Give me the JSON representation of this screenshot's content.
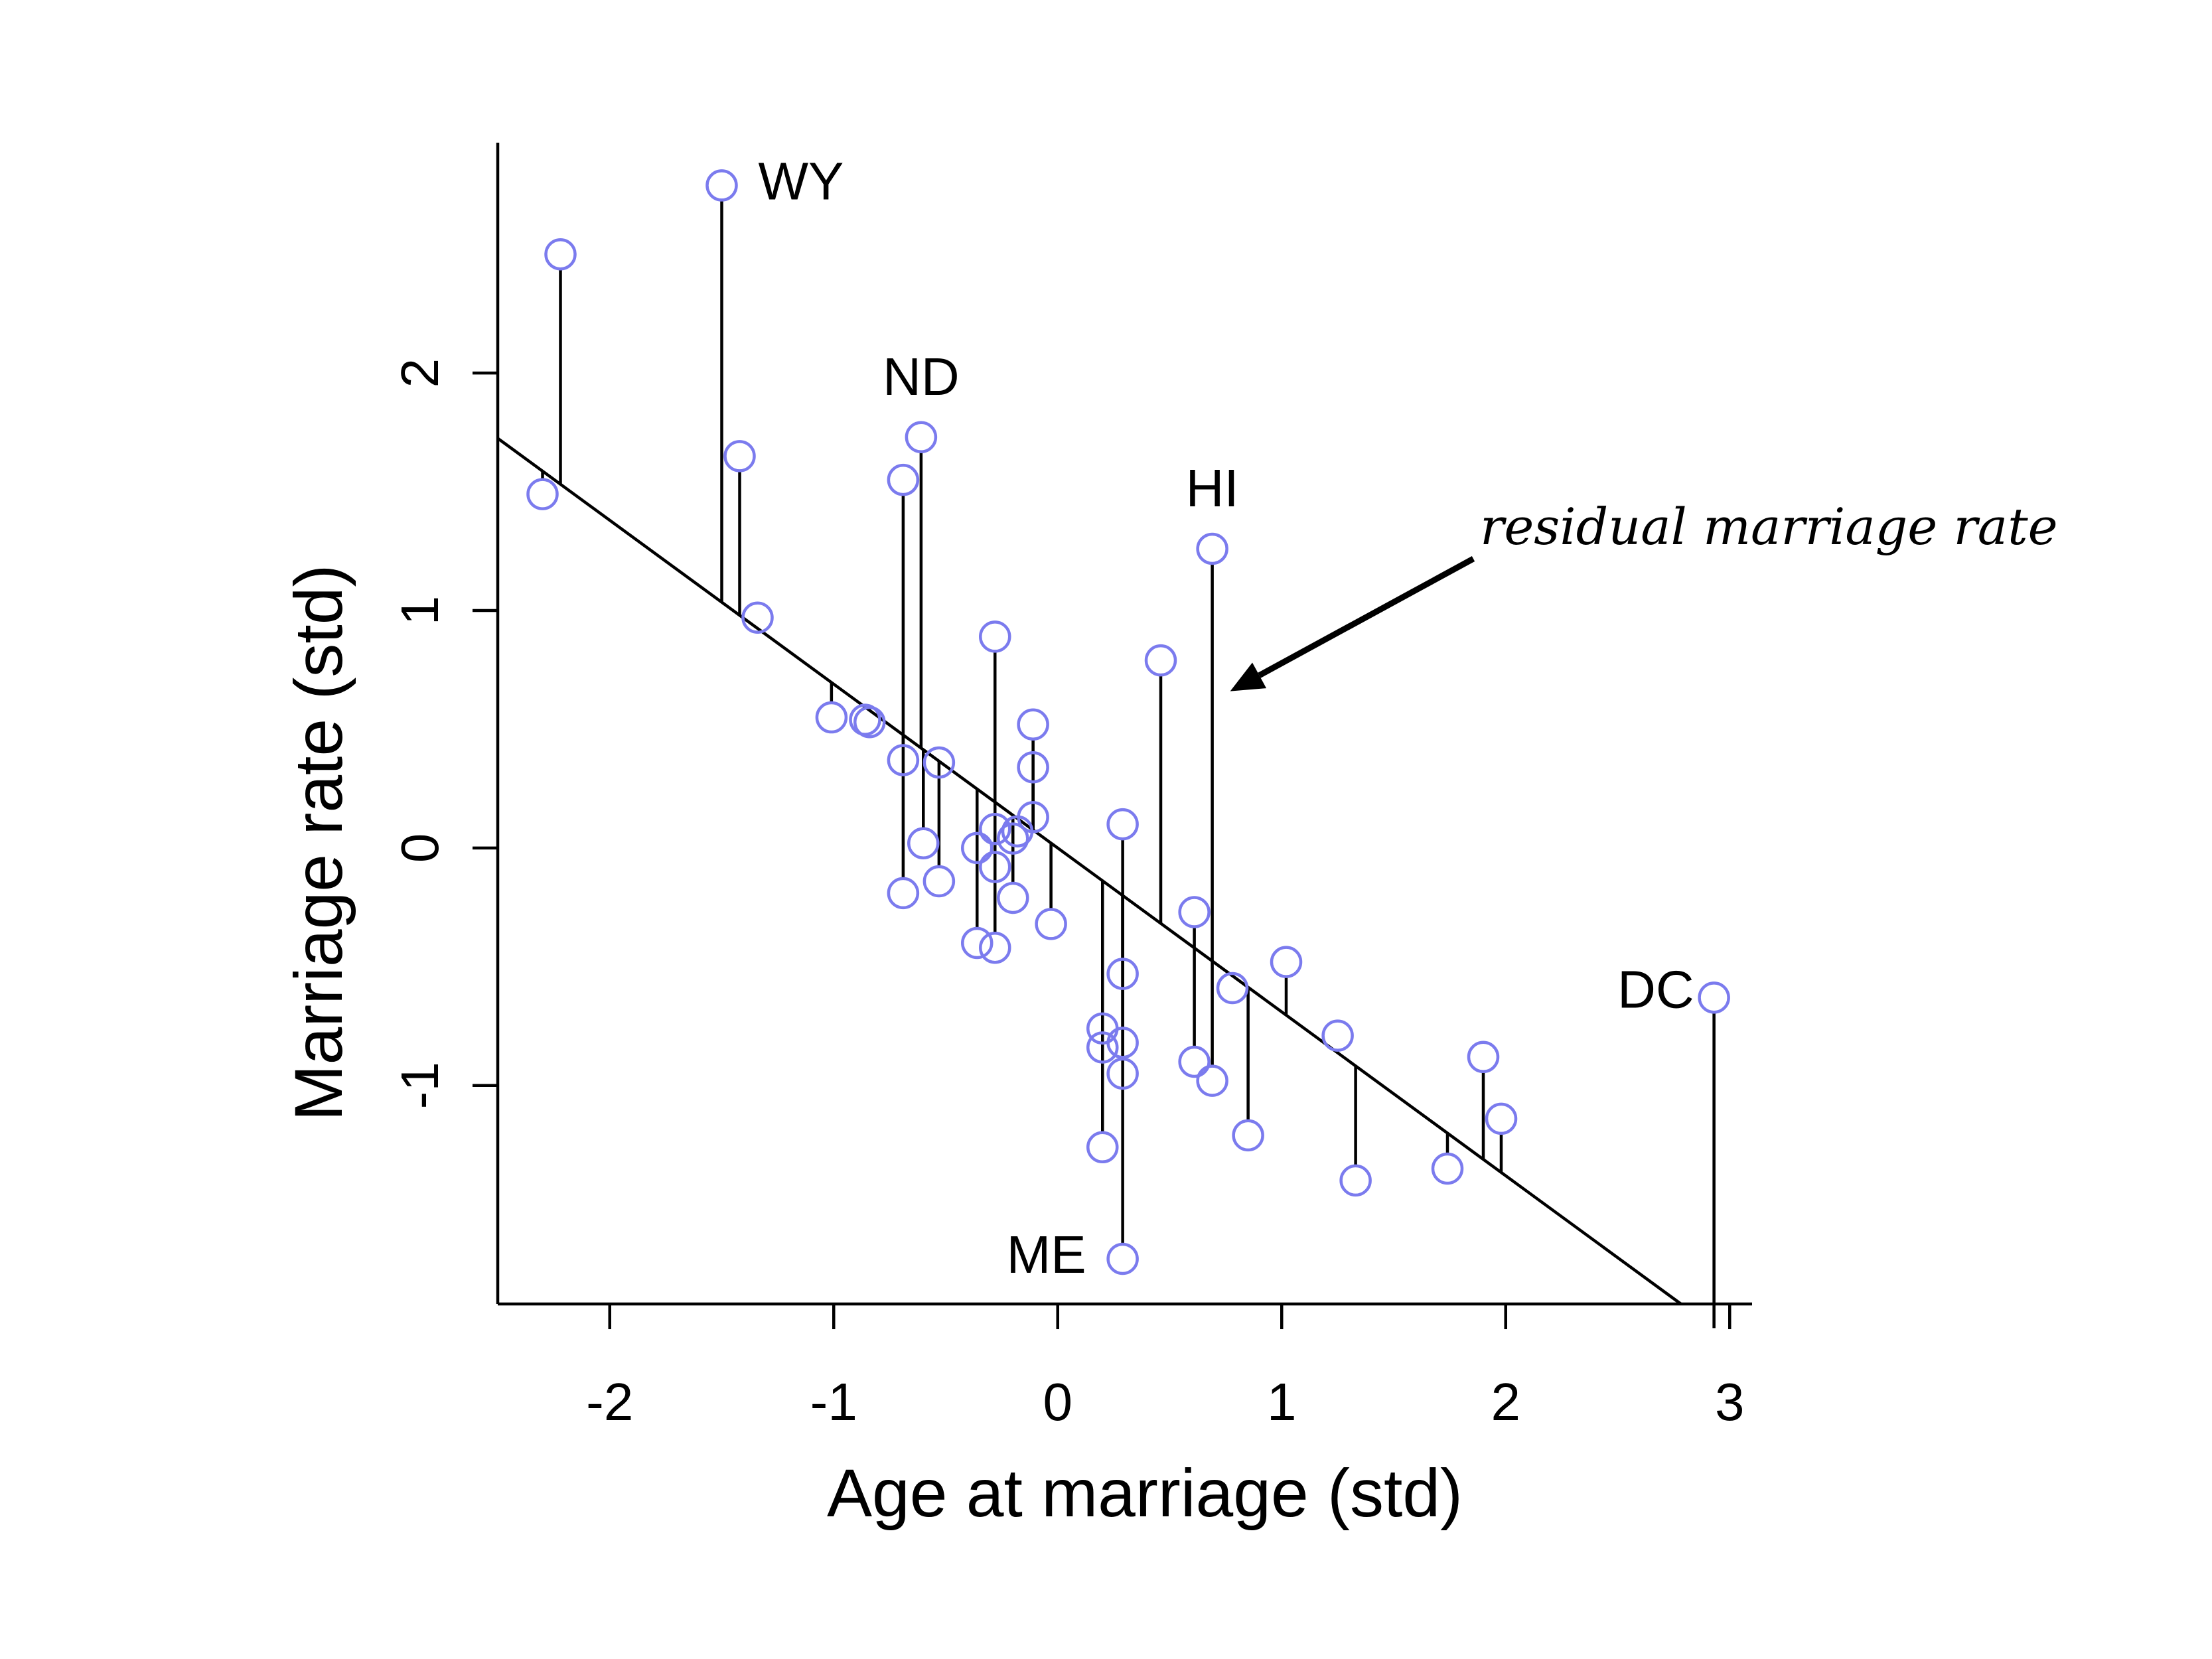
{
  "chart_data": {
    "type": "scatter",
    "xlabel": "Age at marriage (std)",
    "ylabel": "Marriage rate (std)",
    "xlim": [
      -2.5,
      3.1
    ],
    "ylim": [
      -1.92,
      2.97
    ],
    "xticks": [
      -2,
      -1,
      0,
      1,
      2,
      3
    ],
    "yticks": [
      -1,
      0,
      1,
      2
    ],
    "grid": false,
    "regression_line": {
      "intercept": 0.0,
      "slope": -0.69
    },
    "point_color": "#7b7bee",
    "points": [
      {
        "x": -2.3,
        "y": 1.49
      },
      {
        "x": -2.22,
        "y": 2.5
      },
      {
        "x": -1.5,
        "y": 2.79,
        "label": "WY"
      },
      {
        "x": -1.42,
        "y": 1.65
      },
      {
        "x": -1.34,
        "y": 0.97
      },
      {
        "x": -1.01,
        "y": 0.55
      },
      {
        "x": -0.86,
        "y": 0.54
      },
      {
        "x": -0.84,
        "y": 0.53
      },
      {
        "x": -0.69,
        "y": 1.55
      },
      {
        "x": -0.61,
        "y": 1.73,
        "label": "ND"
      },
      {
        "x": -0.69,
        "y": 0.37
      },
      {
        "x": -0.69,
        "y": -0.19
      },
      {
        "x": -0.6,
        "y": 0.02
      },
      {
        "x": -0.53,
        "y": 0.36
      },
      {
        "x": -0.53,
        "y": -0.14
      },
      {
        "x": -0.36,
        "y": 0.0
      },
      {
        "x": -0.36,
        "y": -0.4
      },
      {
        "x": -0.28,
        "y": 0.89
      },
      {
        "x": -0.28,
        "y": 0.08
      },
      {
        "x": -0.28,
        "y": -0.08
      },
      {
        "x": -0.28,
        "y": -0.42
      },
      {
        "x": -0.2,
        "y": 0.04
      },
      {
        "x": -0.18,
        "y": 0.07
      },
      {
        "x": -0.2,
        "y": -0.21
      },
      {
        "x": -0.11,
        "y": 0.52
      },
      {
        "x": -0.11,
        "y": 0.34
      },
      {
        "x": -0.11,
        "y": 0.13
      },
      {
        "x": -0.03,
        "y": -0.32
      },
      {
        "x": 0.2,
        "y": -0.76
      },
      {
        "x": 0.2,
        "y": -0.84
      },
      {
        "x": 0.2,
        "y": -1.26
      },
      {
        "x": 0.29,
        "y": 0.1
      },
      {
        "x": 0.29,
        "y": -0.53
      },
      {
        "x": 0.29,
        "y": -0.82
      },
      {
        "x": 0.29,
        "y": -0.95
      },
      {
        "x": 0.29,
        "y": -1.73,
        "label": "ME"
      },
      {
        "x": 0.46,
        "y": 0.79
      },
      {
        "x": 0.61,
        "y": -0.27
      },
      {
        "x": 0.61,
        "y": -0.9
      },
      {
        "x": 0.69,
        "y": 1.26,
        "label": "HI"
      },
      {
        "x": 0.69,
        "y": -0.98
      },
      {
        "x": 0.78,
        "y": -0.59
      },
      {
        "x": 0.85,
        "y": -1.21
      },
      {
        "x": 1.02,
        "y": -0.48
      },
      {
        "x": 1.25,
        "y": -0.79
      },
      {
        "x": 1.33,
        "y": -1.4
      },
      {
        "x": 1.74,
        "y": -1.35
      },
      {
        "x": 1.9,
        "y": -0.88
      },
      {
        "x": 1.98,
        "y": -1.14
      },
      {
        "x": 2.93,
        "y": -0.63,
        "label": "DC"
      }
    ],
    "annotations": [
      {
        "text": "residual marriage rate",
        "arrow_to": {
          "x": 0.77,
          "y": 0.66
        }
      }
    ]
  }
}
